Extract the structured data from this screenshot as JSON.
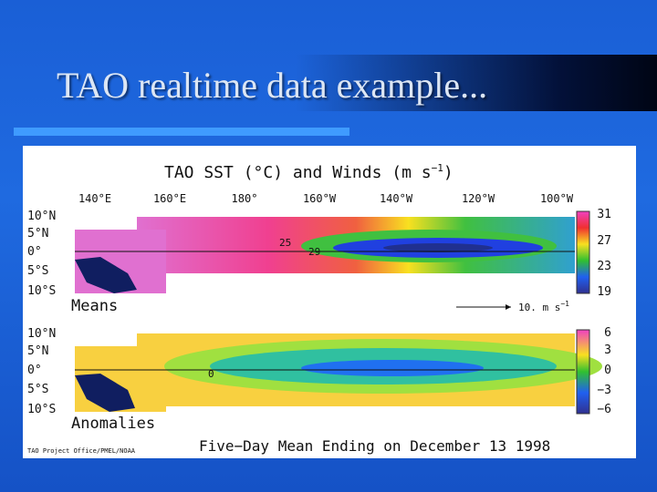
{
  "slide": {
    "title": "TAO realtime data example..."
  },
  "figure": {
    "title": "TAO SST (°C) and Winds (m s",
    "title_exponent": "−1",
    "title_close": ")",
    "longitudes": [
      "140°E",
      "160°E",
      "180°",
      "160°W",
      "140°W",
      "120°W",
      "100°W"
    ],
    "panels": [
      {
        "label": "Means",
        "latitudes": [
          "10°N",
          "5°N",
          "0°",
          "5°S",
          "10°S"
        ],
        "colorbar": [
          "31",
          "27",
          "23",
          "19"
        ],
        "contour_labels": [
          "25",
          "29"
        ]
      },
      {
        "label": "Anomalies",
        "latitudes": [
          "10°N",
          "5°N",
          "0°",
          "5°S",
          "10°S"
        ],
        "colorbar": [
          "6",
          "3",
          "0",
          "−3",
          "−6"
        ],
        "contour_labels": [
          "0"
        ]
      }
    ],
    "scale_label": "10. m s",
    "scale_exponent": "−1",
    "footer": "Five−Day Mean Ending on December 13 1998",
    "credit": "TAO Project Office/PMEL/NOAA"
  }
}
